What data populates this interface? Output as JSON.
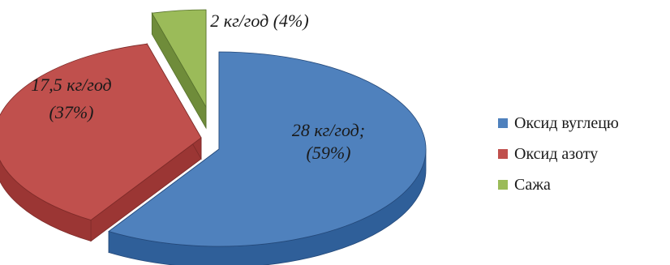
{
  "chart_data": {
    "type": "pie",
    "style": "3d-exploded",
    "legend_position": "right",
    "slices": [
      {
        "name": "Оксид вуглецю",
        "value": 28,
        "percent": 59,
        "label_lines": [
          "28 кг/год;",
          "(59%)"
        ],
        "color": "#4f81bd",
        "side_color": "#2f5f99",
        "edge_color": "#24497a"
      },
      {
        "name": "Оксид азоту",
        "value": 17.5,
        "percent": 37,
        "label_lines": [
          "17,5 кг/год",
          "(37%)"
        ],
        "color": "#c0504d",
        "side_color": "#9b3634",
        "edge_color": "#7d2a28"
      },
      {
        "name": "Сажа",
        "value": 2,
        "percent": 4,
        "label_lines": [
          "2 кг/год (4%)"
        ],
        "color": "#9bbb59",
        "side_color": "#6f8c3a",
        "edge_color": "#56702c"
      }
    ]
  }
}
